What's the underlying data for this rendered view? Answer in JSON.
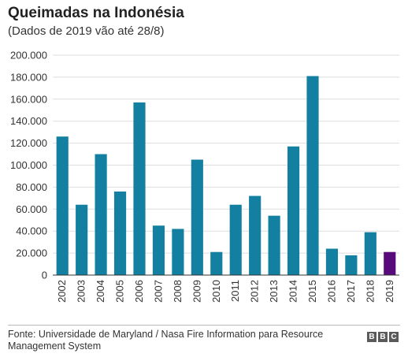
{
  "chart_data": {
    "type": "bar",
    "title": "Queimadas na Indonésia",
    "subtitle": "(Dados de 2019 vão até 28/8)",
    "categories": [
      "2002",
      "2003",
      "2004",
      "2005",
      "2006",
      "2007",
      "2008",
      "2009",
      "2010",
      "2011",
      "2012",
      "2013",
      "2014",
      "2015",
      "2016",
      "2017",
      "2018",
      "2019"
    ],
    "values": [
      126000,
      64000,
      110000,
      76000,
      157000,
      45000,
      42000,
      105000,
      21000,
      64000,
      72000,
      54000,
      117000,
      181000,
      24000,
      18000,
      39000,
      21000
    ],
    "ylim": [
      0,
      200000
    ],
    "yticks": [
      0,
      20000,
      40000,
      60000,
      80000,
      100000,
      120000,
      140000,
      160000,
      180000,
      200000
    ],
    "ytick_labels": [
      "0",
      "20.000",
      "40.000",
      "60.000",
      "80.000",
      "100.000",
      "120.000",
      "140.000",
      "160.000",
      "180.000",
      "200.000"
    ],
    "grid": true,
    "colors": {
      "default": "#1380A1",
      "highlight": "#590A7A",
      "highlight_category": "2019"
    }
  },
  "footer": {
    "source": "Fonte: Universidade de Maryland / Nasa Fire Information para Resource Management System",
    "logo_text": [
      "B",
      "B",
      "C"
    ]
  }
}
